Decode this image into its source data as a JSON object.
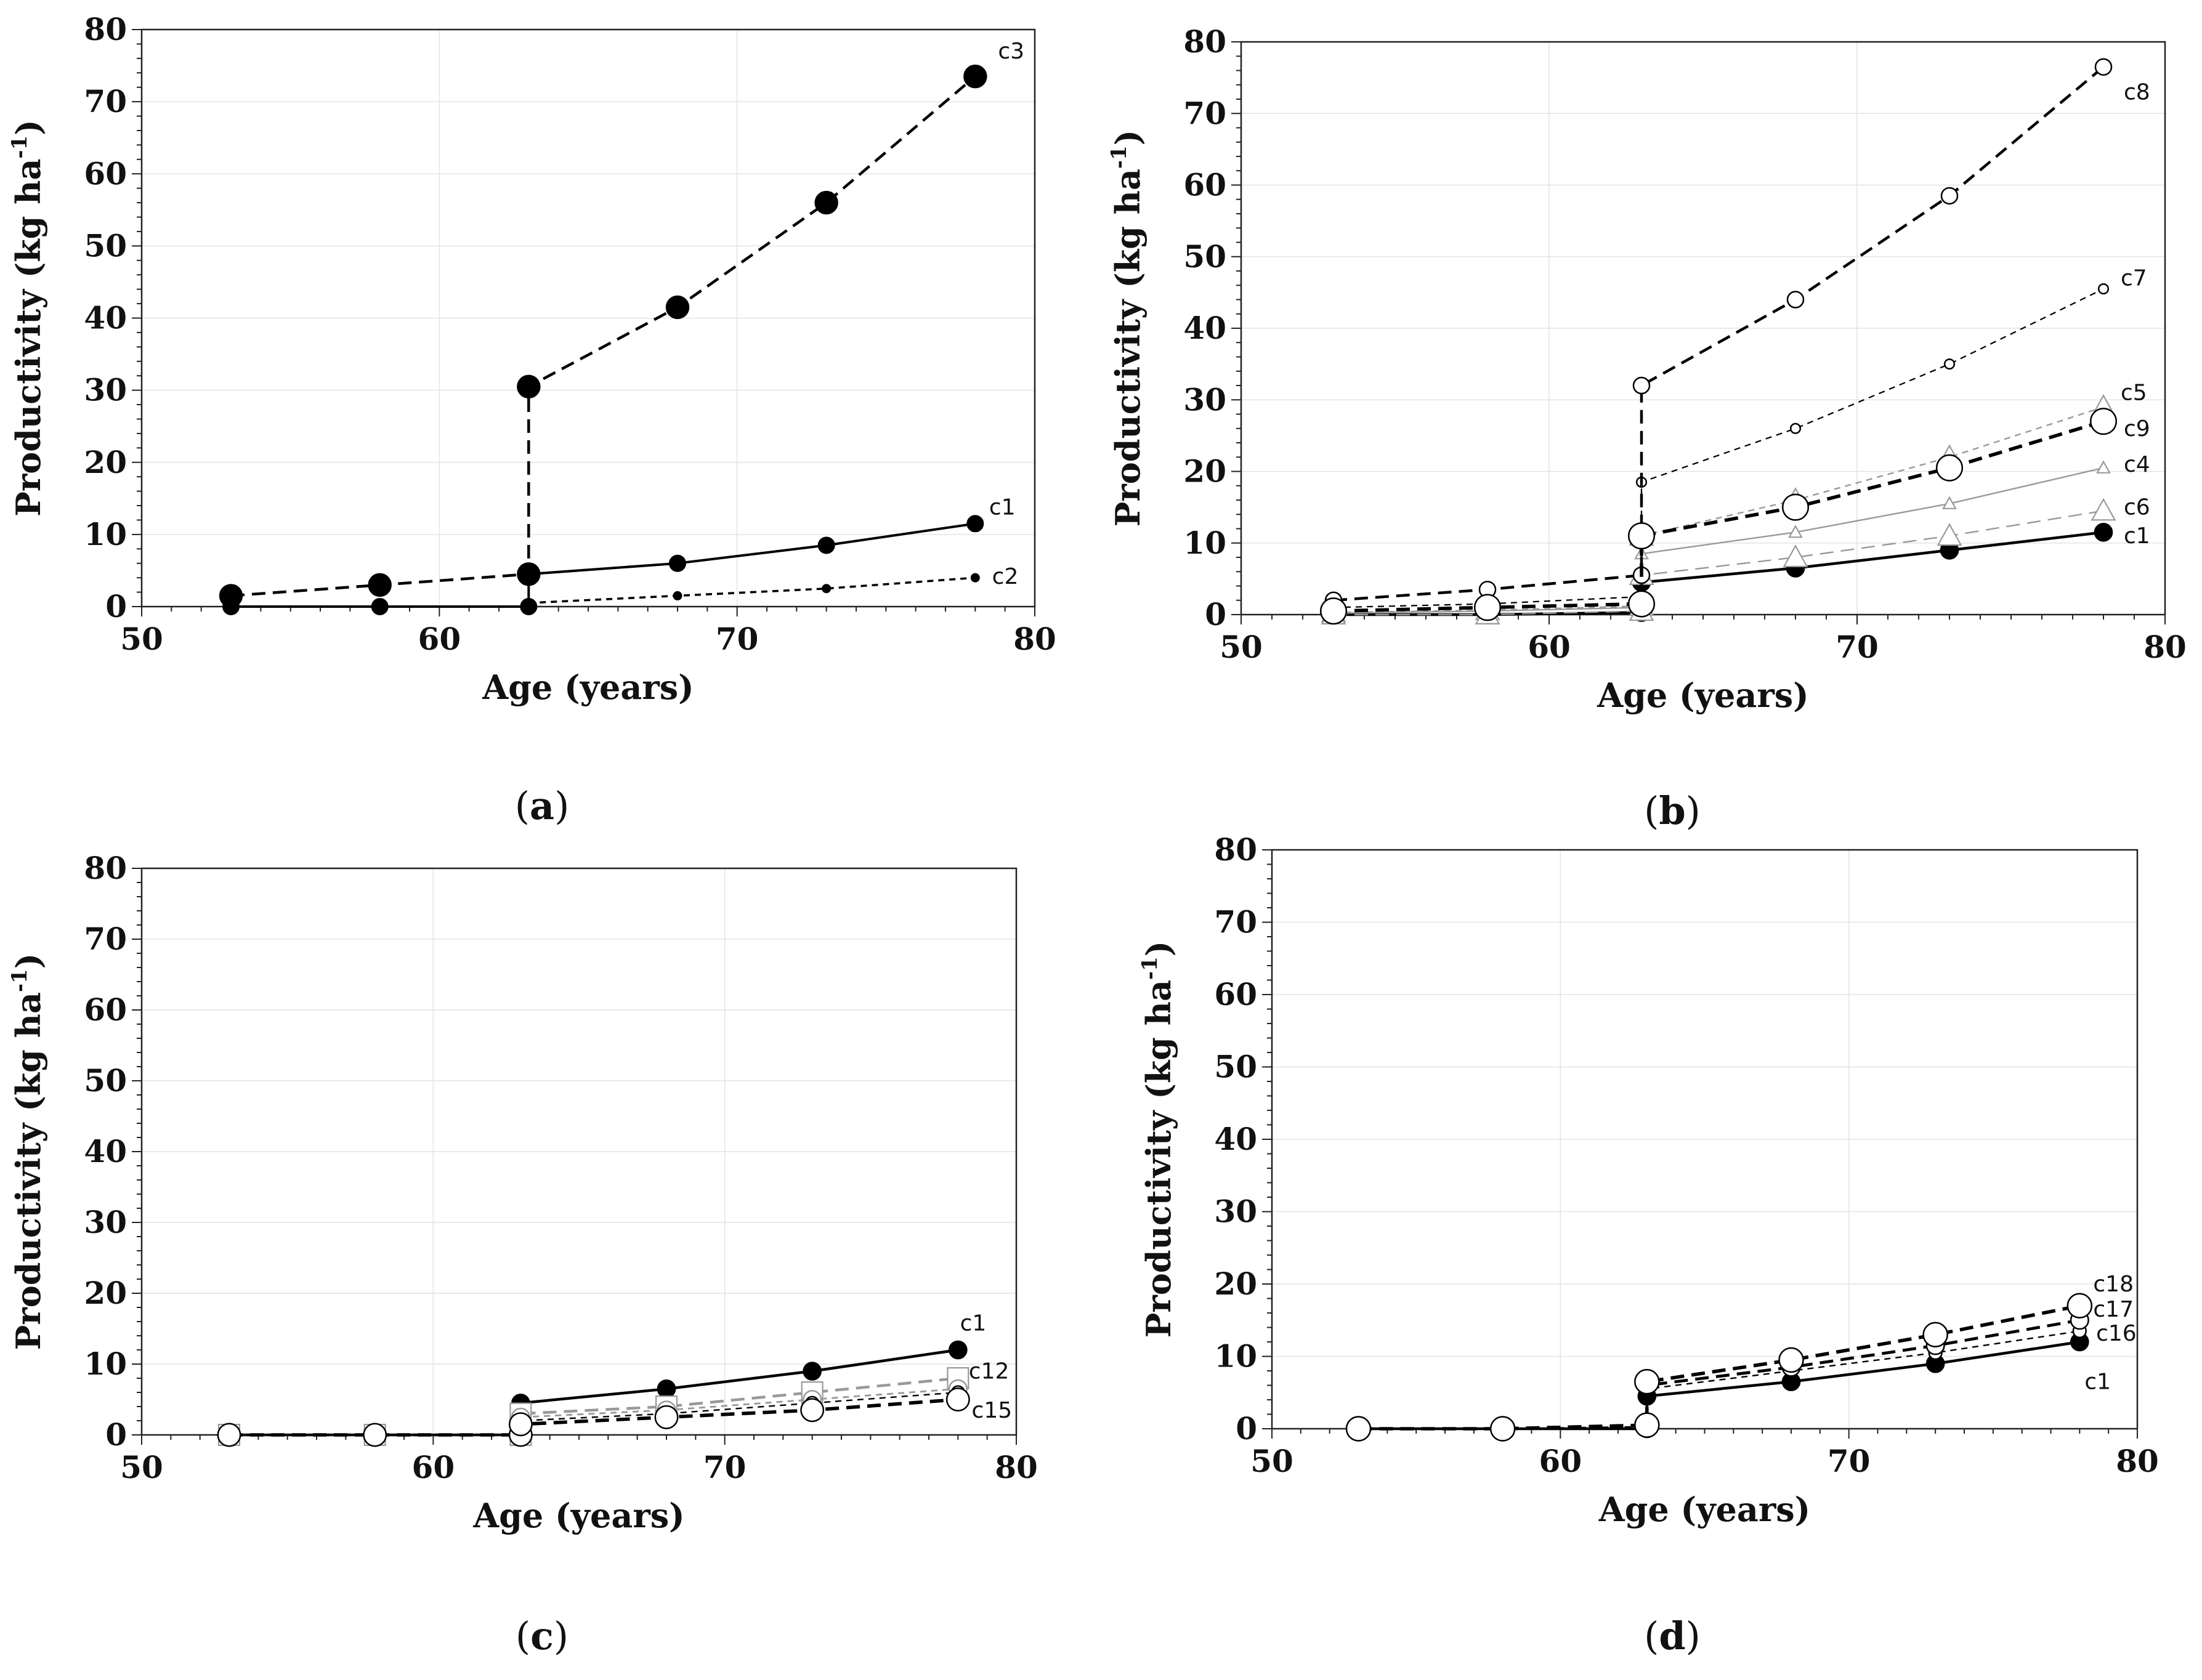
{
  "chart_data": [
    {
      "panel": "a",
      "type": "line",
      "caption": {
        "open": "(",
        "letter": "a",
        "close": ")"
      },
      "xlabel": "Age (years)",
      "ylabel": "Productivity (kg ha",
      "ylabel_sup": "-1",
      "ylabel_close": ")",
      "xlim": [
        50,
        80
      ],
      "ylim": [
        0,
        80
      ],
      "xticks": [
        "50",
        "60",
        "70",
        "80"
      ],
      "yticks": [
        "0",
        "10",
        "20",
        "30",
        "40",
        "50",
        "60",
        "70",
        "80"
      ],
      "grid": true,
      "series": [
        {
          "name": "c1",
          "x": [
            53,
            58,
            63,
            63,
            68,
            73,
            78
          ],
          "y": [
            0,
            0,
            0,
            4.5,
            6,
            8.5,
            11.5
          ],
          "color": "#000000",
          "dash": "solid",
          "width": 2.5,
          "marker": "filled-circle",
          "msize": 10
        },
        {
          "name": "c2",
          "x": [
            63,
            68,
            73,
            78
          ],
          "y": [
            0.5,
            1.5,
            2.5,
            4
          ],
          "color": "#000000",
          "dash": "short",
          "width": 2.2,
          "marker": "filled-circle",
          "msize": 5
        },
        {
          "name": "c3",
          "x": [
            53,
            58,
            63,
            63,
            68,
            73,
            78
          ],
          "y": [
            1.5,
            3,
            4.5,
            30.5,
            41.5,
            56,
            73.5
          ],
          "color": "#000000",
          "dash": "long",
          "width": 2.8,
          "marker": "filled-circle",
          "msize": 14
        }
      ]
    },
    {
      "panel": "b",
      "type": "line",
      "caption": {
        "open": "(",
        "letter": "b",
        "close": ")"
      },
      "xlabel": "Age (years)",
      "ylabel": "Productivity (kg ha",
      "ylabel_sup": "-1",
      "ylabel_close": ")",
      "xlim": [
        50,
        80
      ],
      "ylim": [
        0,
        80
      ],
      "xticks": [
        "50",
        "60",
        "70",
        "80"
      ],
      "yticks": [
        "0",
        "10",
        "20",
        "30",
        "40",
        "50",
        "60",
        "70",
        "80"
      ],
      "grid": true,
      "series": [
        {
          "name": "c1",
          "x": [
            53,
            58,
            63,
            63,
            68,
            73,
            78
          ],
          "y": [
            0,
            0,
            0.3,
            4.5,
            6.5,
            9,
            11.5
          ],
          "color": "#000000",
          "dash": "solid",
          "width": 2.8,
          "marker": "filled-circle",
          "msize": 11
        },
        {
          "name": "c4",
          "x": [
            53,
            58,
            63,
            63,
            68,
            73,
            78
          ],
          "y": [
            0.2,
            0.5,
            1,
            8.5,
            11.5,
            15.5,
            20.5
          ],
          "color": "#999999",
          "dash": "solid",
          "width": 1.5,
          "marker": "open-triangle",
          "msize": 7
        },
        {
          "name": "c5",
          "x": [
            53,
            58,
            63,
            63,
            68,
            73,
            78
          ],
          "y": [
            0.3,
            0.6,
            1.2,
            11,
            16,
            22,
            29
          ],
          "color": "#999999",
          "dash": "short",
          "width": 1.5,
          "marker": "open-triangle",
          "msize": 13
        },
        {
          "name": "c6",
          "x": [
            53,
            58,
            63,
            63,
            68,
            73,
            78
          ],
          "y": [
            0,
            0,
            0.5,
            5.5,
            8,
            11,
            14.5
          ],
          "color": "#999999",
          "dash": "long",
          "width": 1.5,
          "marker": "open-triangle",
          "msize": 13
        },
        {
          "name": "c7",
          "x": [
            53,
            58,
            63,
            63,
            68,
            73,
            78
          ],
          "y": [
            1,
            1.5,
            2.5,
            18.5,
            26,
            35,
            45.5
          ],
          "color": "#000000",
          "dash": "short",
          "width": 1.4,
          "marker": "open-circle",
          "msize": 6
        },
        {
          "name": "c8",
          "x": [
            53,
            58,
            63,
            63,
            68,
            73,
            78
          ],
          "y": [
            2,
            3.5,
            5.5,
            32,
            44,
            58.5,
            76.5
          ],
          "color": "#000000",
          "dash": "long",
          "width": 2.8,
          "marker": "open-circle",
          "msize": 10
        },
        {
          "name": "c9",
          "x": [
            53,
            58,
            63,
            63,
            68,
            73,
            78
          ],
          "y": [
            0.5,
            1,
            1.5,
            11,
            15,
            20.5,
            27
          ],
          "color": "#000000",
          "dash": "long",
          "width": 3.5,
          "marker": "open-circle",
          "msize": 16
        }
      ]
    },
    {
      "panel": "c",
      "type": "line",
      "caption": {
        "open": "(",
        "letter": "c",
        "close": ")"
      },
      "xlabel": "Age (years)",
      "ylabel": "Productivity (kg ha",
      "ylabel_sup": "-1",
      "ylabel_close": ")",
      "xlim": [
        50,
        80
      ],
      "ylim": [
        0,
        80
      ],
      "xticks": [
        "50",
        "60",
        "70",
        "80"
      ],
      "yticks": [
        "0",
        "10",
        "20",
        "30",
        "40",
        "50",
        "60",
        "70",
        "80"
      ],
      "grid": true,
      "series": [
        {
          "name": "c1",
          "x": [
            53,
            58,
            63,
            63,
            68,
            73,
            78
          ],
          "y": [
            0,
            0,
            0,
            4.5,
            6.5,
            9,
            12
          ],
          "color": "#000000",
          "dash": "solid",
          "width": 2.8,
          "marker": "filled-circle",
          "msize": 11
        },
        {
          "name": "c12",
          "x": [
            53,
            58,
            63,
            63,
            68,
            73,
            78
          ],
          "y": [
            0,
            0,
            0,
            3,
            4,
            6,
            8
          ],
          "color": "#999999",
          "dash": "long",
          "width": 2.8,
          "marker": "open-square",
          "msize": 13
        },
        {
          "name": "",
          "x": [
            53,
            58,
            63,
            63,
            68,
            73,
            78
          ],
          "y": [
            0,
            0,
            0,
            2.5,
            3.5,
            5,
            6.5
          ],
          "color": "#999999",
          "dash": "short",
          "width": 1.8,
          "marker": "open-circle",
          "msize": 11
        },
        {
          "name": "",
          "x": [
            53,
            58,
            63,
            63,
            68,
            73,
            78
          ],
          "y": [
            0,
            0,
            0,
            2,
            3,
            4.5,
            6
          ],
          "color": "#000000",
          "dash": "short",
          "width": 1.5,
          "marker": "open-circle",
          "msize": 8
        },
        {
          "name": "c15",
          "x": [
            53,
            58,
            63,
            63,
            68,
            73,
            78
          ],
          "y": [
            0,
            0,
            0,
            1.5,
            2.5,
            3.5,
            5
          ],
          "color": "#000000",
          "dash": "long",
          "width": 3.5,
          "marker": "open-circle",
          "msize": 14
        }
      ]
    },
    {
      "panel": "d",
      "type": "line",
      "caption": {
        "open": "(",
        "letter": "d",
        "close": ")"
      },
      "xlabel": "Age (years)",
      "ylabel": "Productivity (kg ha",
      "ylabel_sup": "-1",
      "ylabel_close": ")",
      "xlim": [
        50,
        80
      ],
      "ylim": [
        0,
        80
      ],
      "xticks": [
        "50",
        "60",
        "70",
        "80"
      ],
      "yticks": [
        "0",
        "10",
        "20",
        "30",
        "40",
        "50",
        "60",
        "70",
        "80"
      ],
      "grid": true,
      "series": [
        {
          "name": "c1",
          "x": [
            53,
            58,
            63,
            63,
            68,
            73,
            78
          ],
          "y": [
            0,
            0,
            0,
            4.5,
            6.5,
            9,
            12
          ],
          "color": "#000000",
          "dash": "solid",
          "width": 2.8,
          "marker": "filled-circle",
          "msize": 11
        },
        {
          "name": "c16",
          "x": [
            53,
            58,
            63,
            63,
            68,
            73,
            78
          ],
          "y": [
            0,
            0,
            0.3,
            5.5,
            8,
            10.5,
            13.5
          ],
          "color": "#000000",
          "dash": "short",
          "width": 1.5,
          "marker": "open-circle",
          "msize": 8
        },
        {
          "name": "c17",
          "x": [
            53,
            58,
            63,
            63,
            68,
            73,
            78
          ],
          "y": [
            0,
            0,
            0.5,
            6,
            8.5,
            11.5,
            15
          ],
          "color": "#000000",
          "dash": "long",
          "width": 3,
          "marker": "open-circle",
          "msize": 11
        },
        {
          "name": "c18",
          "x": [
            53,
            58,
            63,
            63,
            68,
            73,
            78
          ],
          "y": [
            0,
            0,
            0.5,
            6.5,
            9.5,
            13,
            17
          ],
          "color": "#000000",
          "dash": "long",
          "width": 3.5,
          "marker": "open-circle",
          "msize": 15
        }
      ]
    }
  ]
}
